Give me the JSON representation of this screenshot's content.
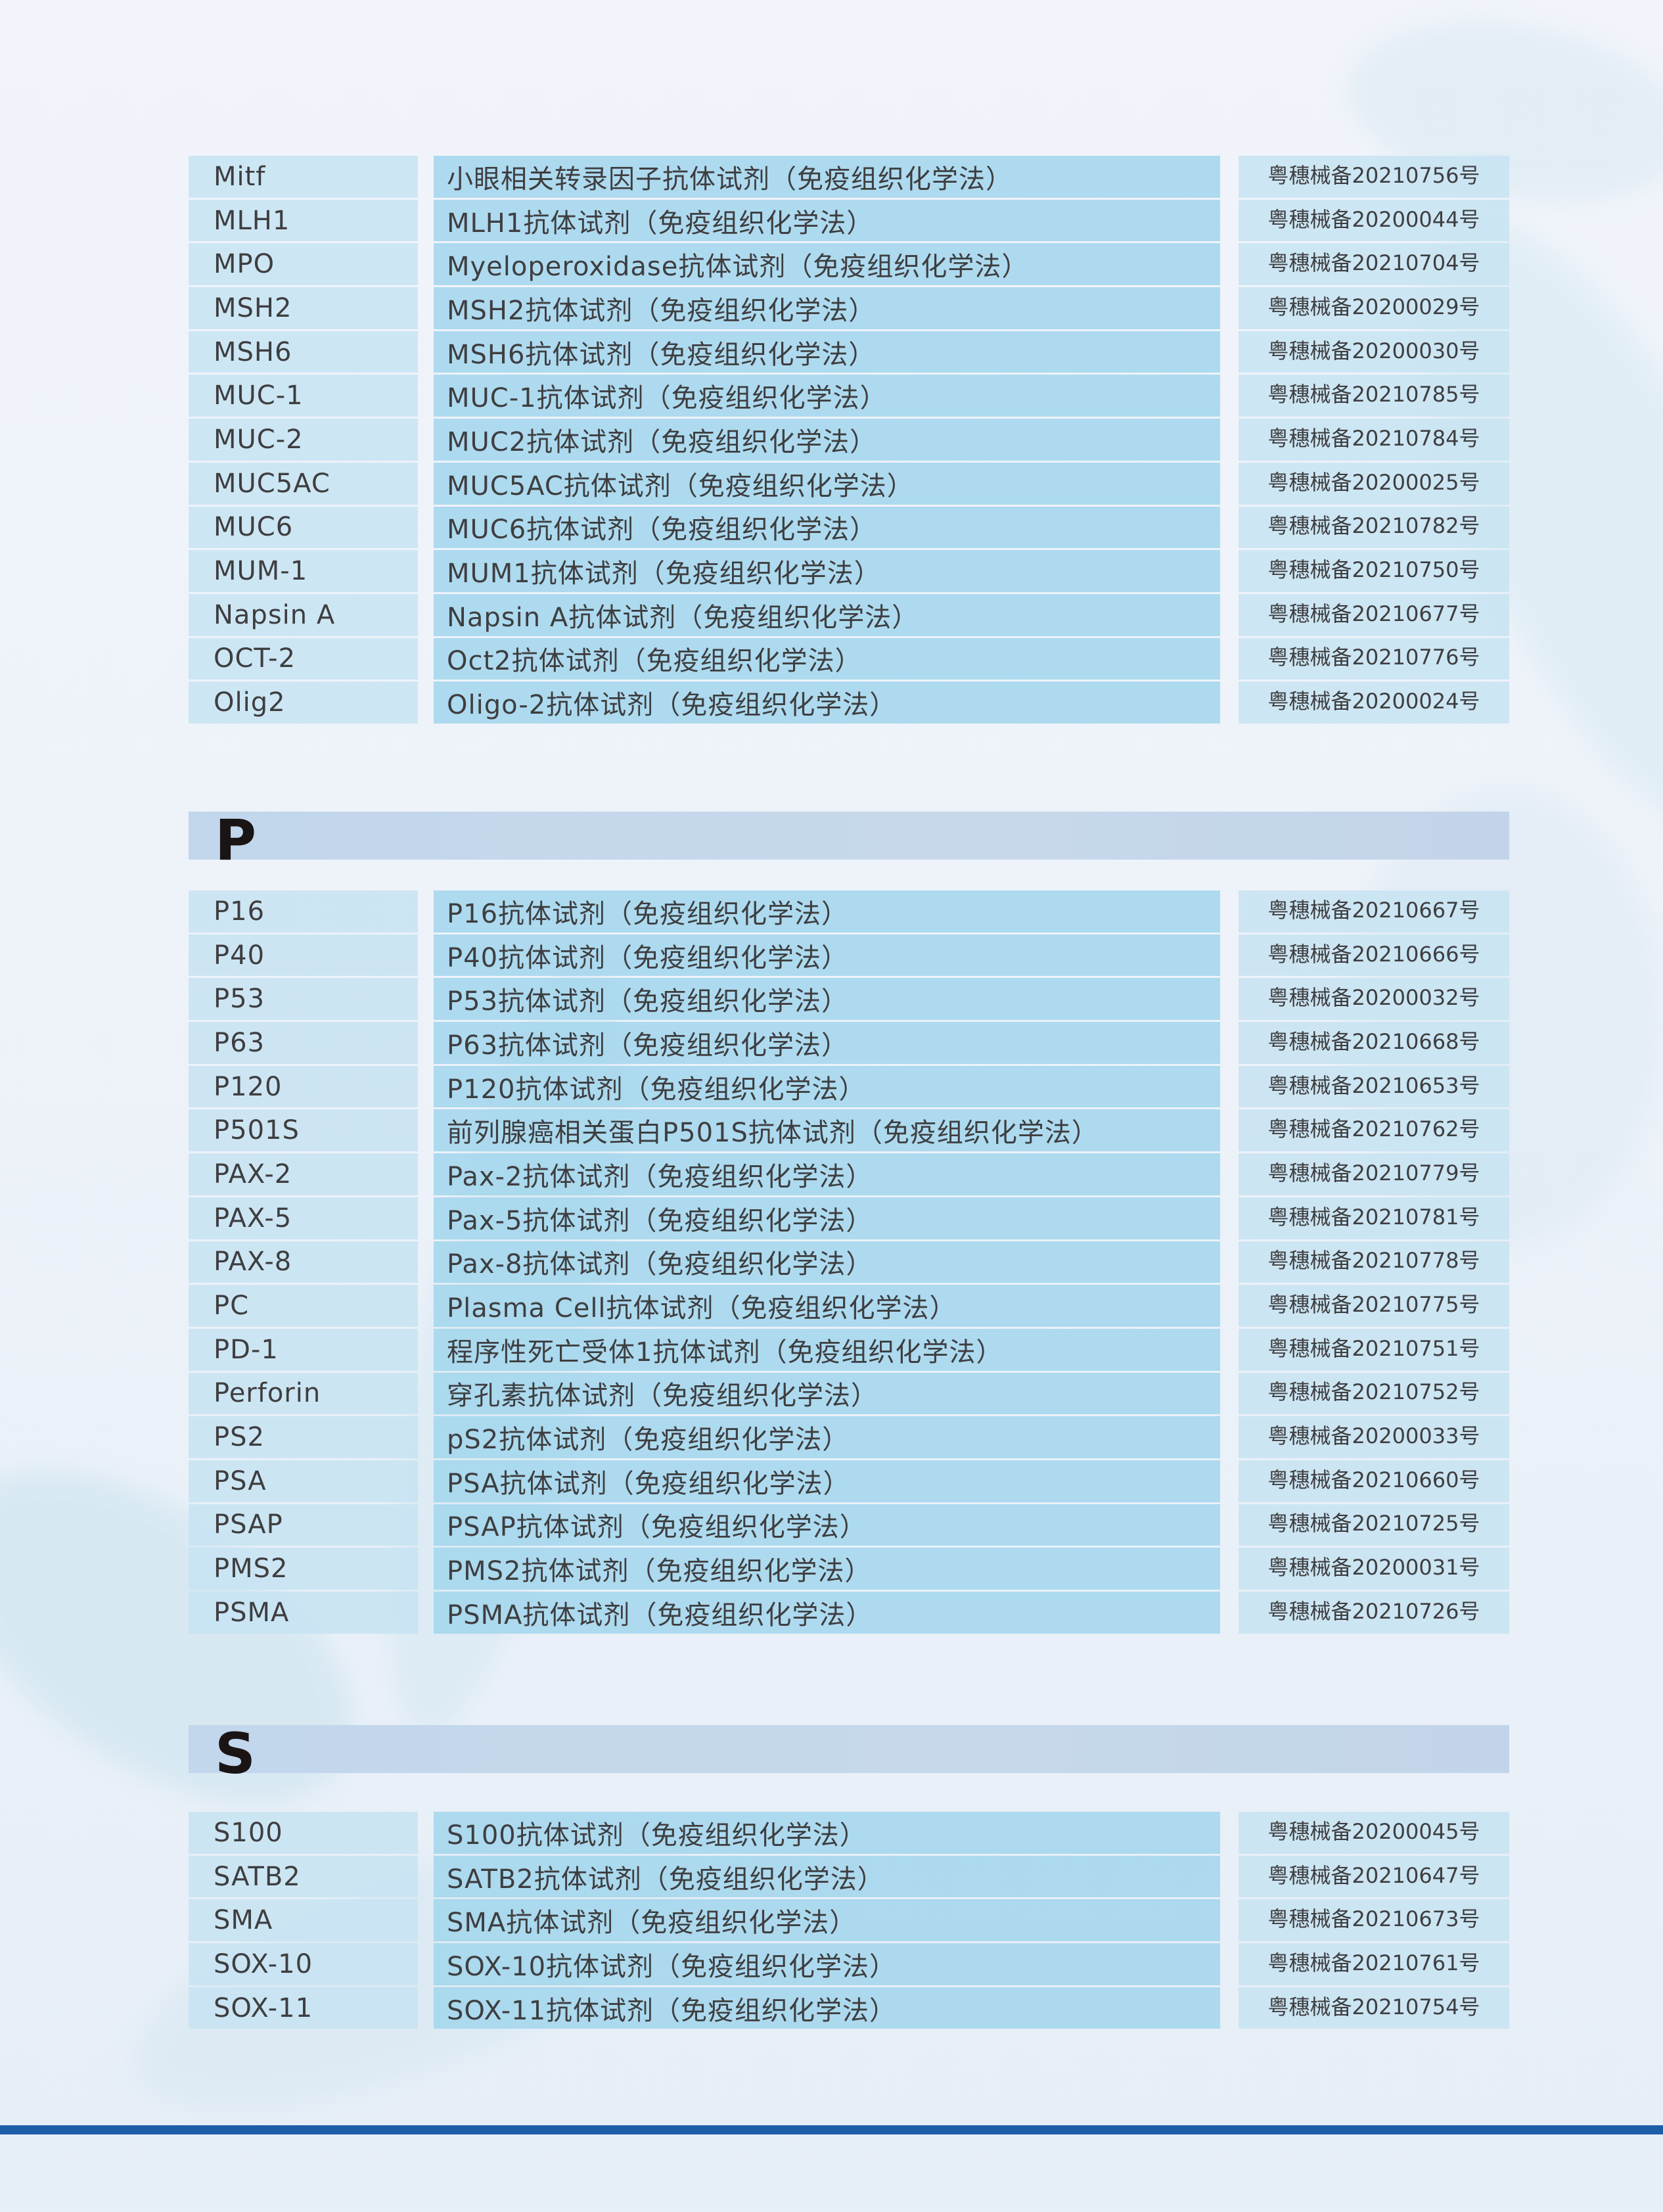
{
  "sections": [
    {
      "letter": "",
      "rows": [
        {
          "code": "Mitf",
          "name": "小眼相关转录因子抗体试剂（免疫组织化学法）",
          "reg": "粤穗械备20210756号"
        },
        {
          "code": "MLH1",
          "name": "MLH1抗体试剂（免疫组织化学法）",
          "reg": "粤穗械备20200044号"
        },
        {
          "code": "MPO",
          "name": "Myeloperoxidase抗体试剂（免疫组织化学法）",
          "reg": "粤穗械备20210704号"
        },
        {
          "code": "MSH2",
          "name": "MSH2抗体试剂（免疫组织化学法）",
          "reg": "粤穗械备20200029号"
        },
        {
          "code": "MSH6",
          "name": "MSH6抗体试剂（免疫组织化学法）",
          "reg": "粤穗械备20200030号"
        },
        {
          "code": "MUC-1",
          "name": "MUC-1抗体试剂（免疫组织化学法）",
          "reg": "粤穗械备20210785号"
        },
        {
          "code": "MUC-2",
          "name": "MUC2抗体试剂（免疫组织化学法）",
          "reg": "粤穗械备20210784号"
        },
        {
          "code": "MUC5AC",
          "name": "MUC5AC抗体试剂（免疫组织化学法）",
          "reg": "粤穗械备20200025号"
        },
        {
          "code": "MUC6",
          "name": "MUC6抗体试剂（免疫组织化学法）",
          "reg": "粤穗械备20210782号"
        },
        {
          "code": "MUM-1",
          "name": "MUM1抗体试剂（免疫组织化学法）",
          "reg": "粤穗械备20210750号"
        },
        {
          "code": "Napsin A",
          "name": "Napsin A抗体试剂（免疫组织化学法）",
          "reg": "粤穗械备20210677号"
        },
        {
          "code": "OCT-2",
          "name": "Oct2抗体试剂（免疫组织化学法）",
          "reg": "粤穗械备20210776号"
        },
        {
          "code": "Olig2",
          "name": "Oligo-2抗体试剂（免疫组织化学法）",
          "reg": "粤穗械备20200024号"
        }
      ]
    },
    {
      "letter": "P",
      "rows": [
        {
          "code": "P16",
          "name": "P16抗体试剂（免疫组织化学法）",
          "reg": "粤穗械备20210667号"
        },
        {
          "code": "P40",
          "name": "P40抗体试剂（免疫组织化学法）",
          "reg": "粤穗械备20210666号"
        },
        {
          "code": "P53",
          "name": "P53抗体试剂（免疫组织化学法）",
          "reg": "粤穗械备20200032号"
        },
        {
          "code": "P63",
          "name": "P63抗体试剂（免疫组织化学法）",
          "reg": "粤穗械备20210668号"
        },
        {
          "code": "P120",
          "name": "P120抗体试剂（免疫组织化学法）",
          "reg": "粤穗械备20210653号"
        },
        {
          "code": "P501S",
          "name": "前列腺癌相关蛋白P501S抗体试剂（免疫组织化学法）",
          "reg": "粤穗械备20210762号"
        },
        {
          "code": "PAX-2",
          "name": "Pax-2抗体试剂（免疫组织化学法）",
          "reg": "粤穗械备20210779号"
        },
        {
          "code": "PAX-5",
          "name": "Pax-5抗体试剂（免疫组织化学法）",
          "reg": "粤穗械备20210781号"
        },
        {
          "code": "PAX-8",
          "name": "Pax-8抗体试剂（免疫组织化学法）",
          "reg": "粤穗械备20210778号"
        },
        {
          "code": "PC",
          "name": "Plasma Cell抗体试剂（免疫组织化学法）",
          "reg": "粤穗械备20210775号"
        },
        {
          "code": "PD-1",
          "name": "程序性死亡受体1抗体试剂（免疫组织化学法）",
          "reg": "粤穗械备20210751号"
        },
        {
          "code": "Perforin",
          "name": "穿孔素抗体试剂（免疫组织化学法）",
          "reg": "粤穗械备20210752号"
        },
        {
          "code": "PS2",
          "name": "pS2抗体试剂（免疫组织化学法）",
          "reg": "粤穗械备20200033号"
        },
        {
          "code": "PSA",
          "name": "PSA抗体试剂（免疫组织化学法）",
          "reg": "粤穗械备20210660号"
        },
        {
          "code": "PSAP",
          "name": "PSAP抗体试剂（免疫组织化学法）",
          "reg": "粤穗械备20210725号"
        },
        {
          "code": "PMS2",
          "name": "PMS2抗体试剂（免疫组织化学法）",
          "reg": "粤穗械备20200031号"
        },
        {
          "code": "PSMA",
          "name": "PSMA抗体试剂（免疫组织化学法）",
          "reg": "粤穗械备20210726号"
        }
      ]
    },
    {
      "letter": "S",
      "rows": [
        {
          "code": "S100",
          "name": "S100抗体试剂（免疫组织化学法）",
          "reg": "粤穗械备20200045号"
        },
        {
          "code": "SATB2",
          "name": "SATB2抗体试剂（免疫组织化学法）",
          "reg": "粤穗械备20210647号"
        },
        {
          "code": "SMA",
          "name": "SMA抗体试剂（免疫组织化学法）",
          "reg": "粤穗械备20210673号"
        },
        {
          "code": "SOX-10",
          "name": "SOX-10抗体试剂（免疫组织化学法）",
          "reg": "粤穗械备20210761号"
        },
        {
          "code": "SOX-11",
          "name": "SOX-11抗体试剂（免疫组织化学法）",
          "reg": "粤穗械备20210754号"
        }
      ]
    }
  ],
  "colors": {
    "accent_line": "#1d5ea9",
    "cell_light": "#c7e3f2",
    "cell_mid": "#a4d6ed",
    "header_bar": "#c4d6eb"
  }
}
